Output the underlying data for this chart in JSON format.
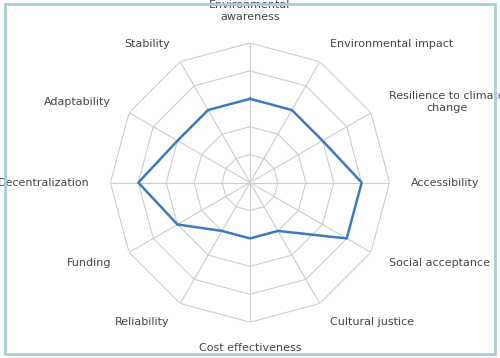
{
  "categories": [
    "Environmental\nawareness",
    "Environmental impact",
    "Resilience to climate\nchange",
    "Accessibility",
    "Social acceptance",
    "Cultural justice",
    "Cost effectiveness",
    "Reliability",
    "Funding",
    "Decentralization",
    "Adaptability",
    "Stability"
  ],
  "values": [
    3,
    3,
    3,
    4,
    4,
    2,
    2,
    2,
    3,
    4,
    3,
    3
  ],
  "n_rings": 5,
  "line_color": "#3a7bbf",
  "grid_color": "#cccccc",
  "bg_color": "#ffffff",
  "border_color": "#a8cdd8",
  "label_fontsize": 8.0,
  "line_width": 1.8,
  "figsize": [
    5.0,
    3.58
  ],
  "dpi": 100
}
